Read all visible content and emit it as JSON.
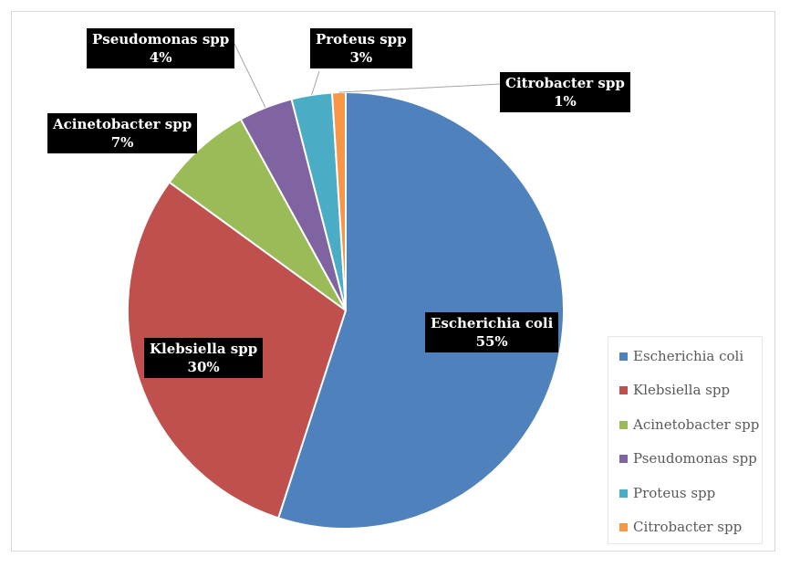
{
  "chart_data": {
    "type": "pie",
    "title": "",
    "categories": [
      "Escherichia coli",
      "Klebsiella spp",
      "Acinetobacter spp",
      "Pseudomonas spp",
      "Proteus spp",
      "Citrobacter spp"
    ],
    "values": [
      55,
      30,
      7,
      4,
      3,
      1
    ],
    "value_labels": [
      "55%",
      "30%",
      "7%",
      "4%",
      "3%",
      "1%"
    ],
    "colors": [
      "#4f81bd",
      "#c0504d",
      "#9bbb59",
      "#8064a2",
      "#4bacc6",
      "#f79646"
    ],
    "legend_position": "right-bottom",
    "data_labels": "black boxes with category name and percentage"
  }
}
